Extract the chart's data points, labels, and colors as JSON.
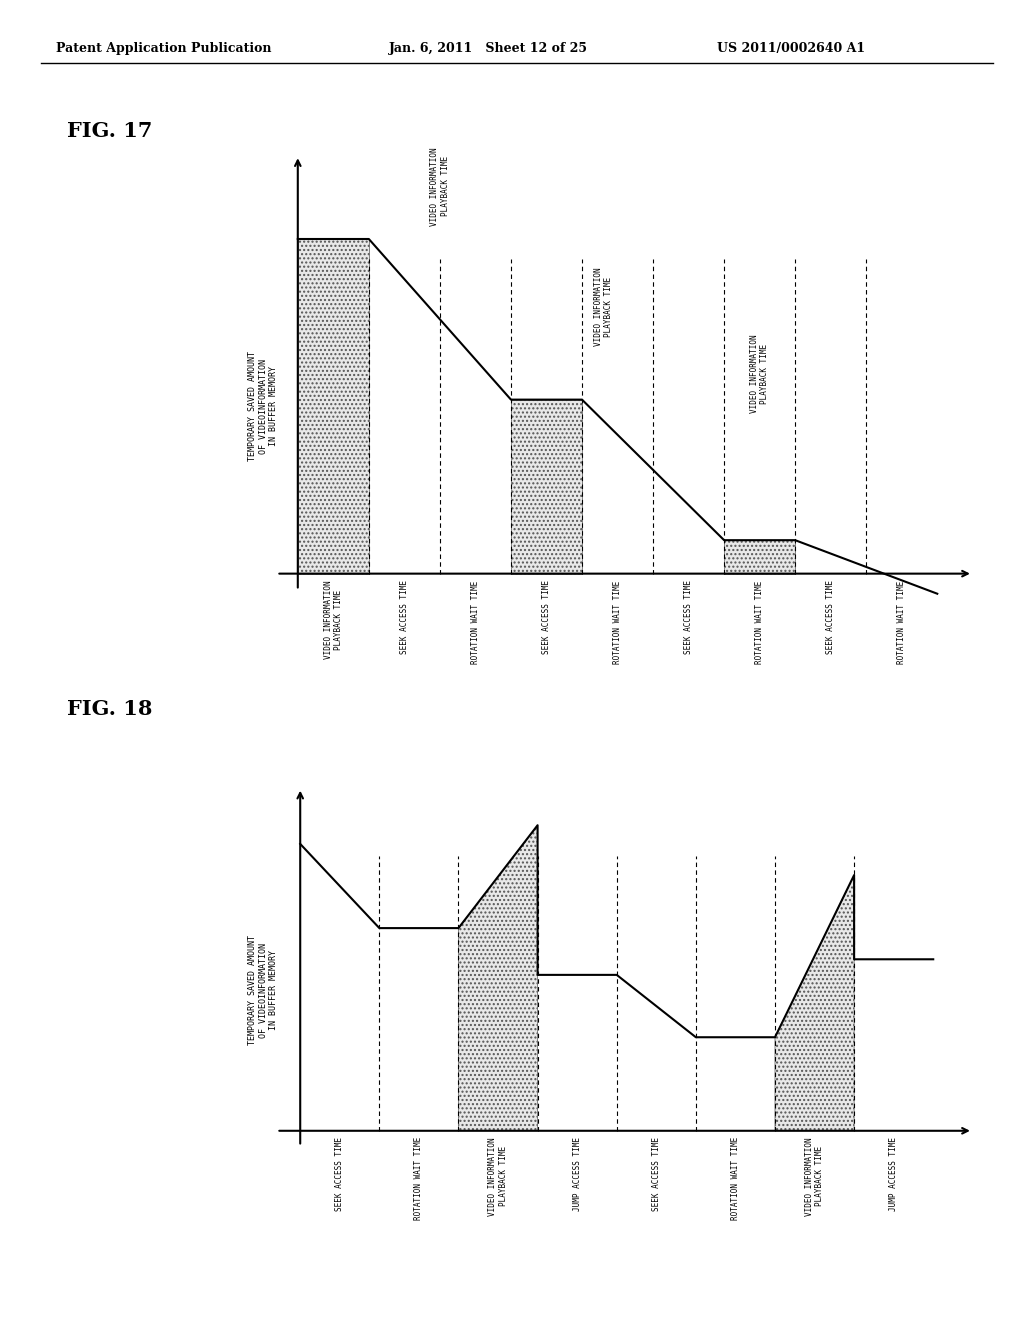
{
  "header_left": "Patent Application Publication",
  "header_mid": "Jan. 6, 2011   Sheet 12 of 25",
  "header_right": "US 2011/0002640 A1",
  "fig17_title": "FIG. 17",
  "fig17_ylabel": "TEMPORARY SAVED AMOUNT\nOF VIDEOINFORMATION\nIN BUFFER MEMORY",
  "fig17_x_labels": [
    "VIDEO INFORMATION\nPLAYBACK TIME",
    "SEEK ACCESS TIME",
    "ROTATION WAIT TIME",
    "SEEK ACCESS TIME",
    "ROTATION WAIT TIME",
    "SEEK ACCESS TIME",
    "ROTATION WAIT TIME",
    "SEEK ACCESS TIME",
    "ROTATION WAIT TIME"
  ],
  "fig17_above_labels": [
    "VIDEO INFORMATION\nPLAYBACK TIME",
    "VIDEO INFORMATION\nPLAYBACK TIME",
    "VIDEO INFORMATION\nPLAYBACK TIME"
  ],
  "fig18_title": "FIG. 18",
  "fig18_ylabel": "TEMPORARY SAVED AMOUNT\nOF VIDEOINFORMATION\nIN BUFFER MEMORY",
  "fig18_x_labels": [
    "SEEK ACCESS TIME",
    "ROTATION WAIT TIME",
    "VIDEO INFORMATION\nPLAYBACK TIME",
    "JUMP ACCESS TIME",
    "SEEK ACCESS TIME",
    "ROTATION WAIT TIME",
    "VIDEO INFORMATION\nPLAYBACK TIME",
    "JUMP ACCESS TIME"
  ],
  "bg_color": "#ffffff"
}
